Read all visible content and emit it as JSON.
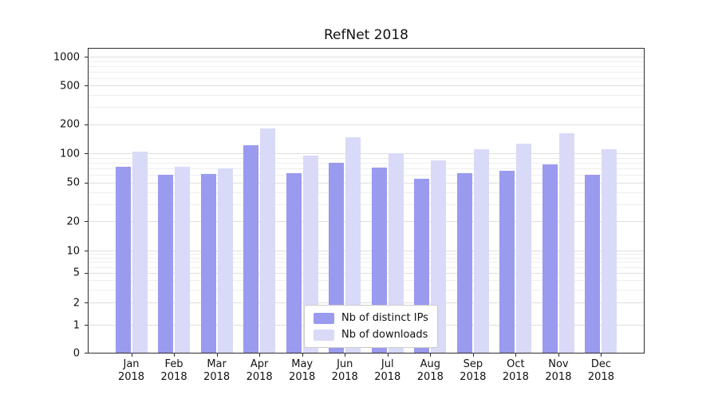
{
  "title": "RefNet 2018",
  "chart_data": {
    "type": "bar",
    "title": "RefNet 2018",
    "categories": [
      "Jan",
      "Feb",
      "Mar",
      "Apr",
      "May",
      "Jun",
      "Jul",
      "Aug",
      "Sep",
      "Oct",
      "Nov",
      "Dec"
    ],
    "year_label": "2018",
    "series": [
      {
        "name": "Nb of distinct IPs",
        "color": "#9a9aef",
        "values": [
          72,
          60,
          61,
          120,
          62,
          80,
          71,
          55,
          62,
          66,
          77,
          60
        ]
      },
      {
        "name": "Nb of downloads",
        "color": "#d9d9f8",
        "values": [
          104,
          72,
          70,
          180,
          95,
          145,
          100,
          85,
          110,
          125,
          160,
          110
        ]
      }
    ],
    "yscale": "symlog",
    "yticks": [
      0,
      1,
      2,
      5,
      10,
      20,
      50,
      100,
      200,
      500,
      1000
    ],
    "ylim": [
      0,
      1280
    ],
    "grid": true,
    "legend_position": "lower center"
  }
}
